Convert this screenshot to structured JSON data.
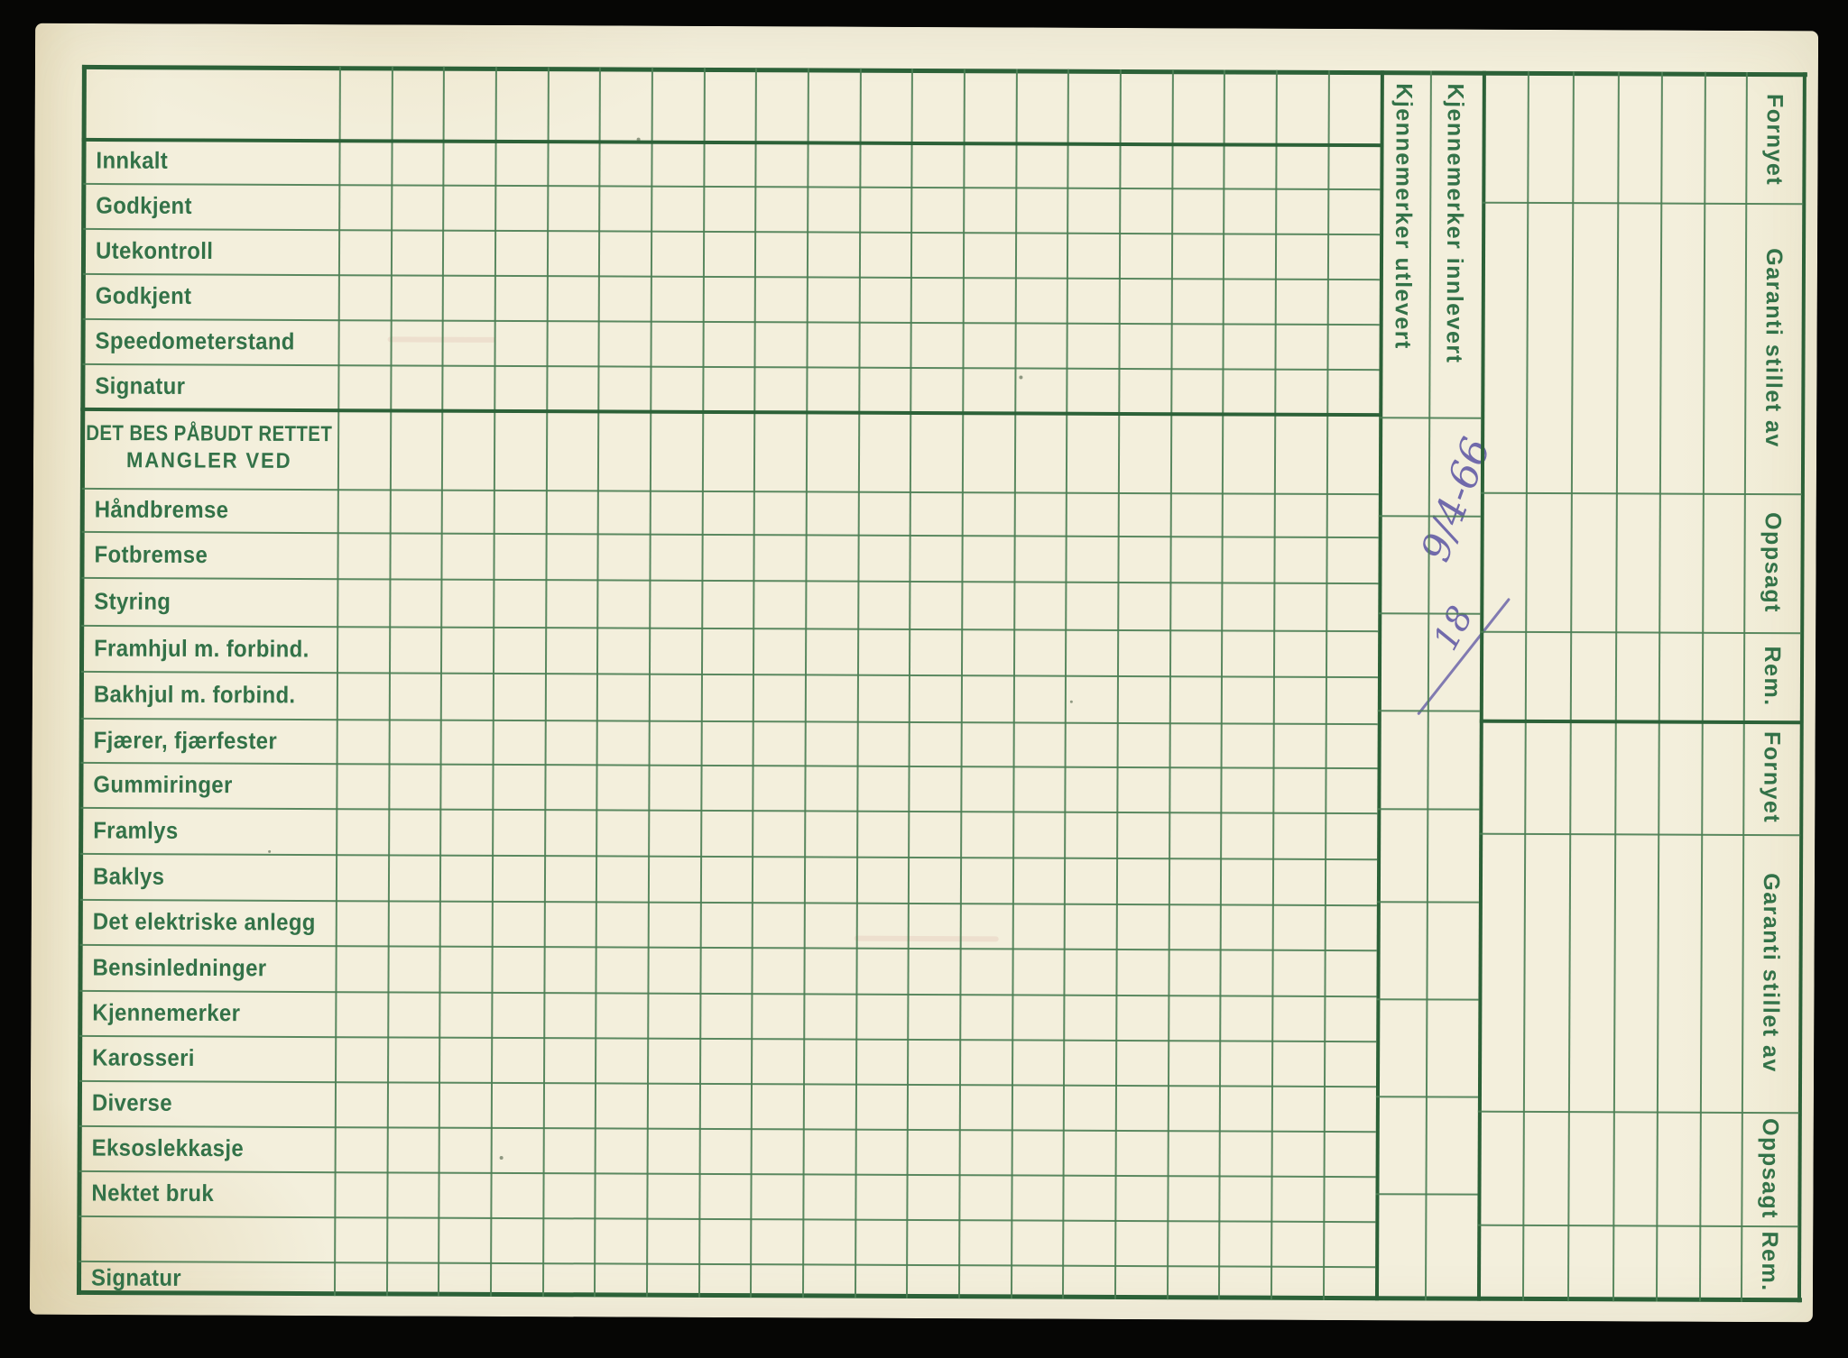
{
  "card": {
    "status_rows": [
      "Innkalt",
      "Godkjent",
      "Utekontroll",
      "Godkjent",
      "Speedometerstand",
      "Signatur"
    ],
    "defects_header": {
      "line1": "DET BES PÅBUDT RETTET",
      "line2": "MANGLER VED"
    },
    "defect_rows": [
      "Håndbremse",
      "Fotbremse",
      "Styring",
      "Framhjul m. forbind.",
      "Bakhjul m. forbind.",
      "Fjærer, fjærfester",
      "Gummiringer",
      "Framlys",
      "Baklys",
      "Det elektriske anlegg",
      "Bensinledninger",
      "Kjennemerker",
      "Karosseri",
      "Diverse",
      "Eksoslekkasje",
      "Nektet bruk",
      "",
      "Signatur"
    ],
    "plate_columns": [
      {
        "label": "Kjennemerker utlevert"
      },
      {
        "label": "Kjennemerker innlevert",
        "handwriting": {
          "date": "9/4-66",
          "mark": "18"
        }
      }
    ],
    "right_sections": [
      "Fornyet",
      "Garanti stillet av",
      "Oppsagt",
      "Rem.",
      "Fornyet",
      "Garanti stillet av",
      "Oppsagt",
      "Rem."
    ],
    "colors": {
      "scan_background": "#060605",
      "card_background": "#f2eeda",
      "grid_line": "#4d7f55",
      "grid_line_dark": "#2c6138",
      "label_text": "#337248",
      "handwriting_ink": "#645ca6"
    }
  }
}
